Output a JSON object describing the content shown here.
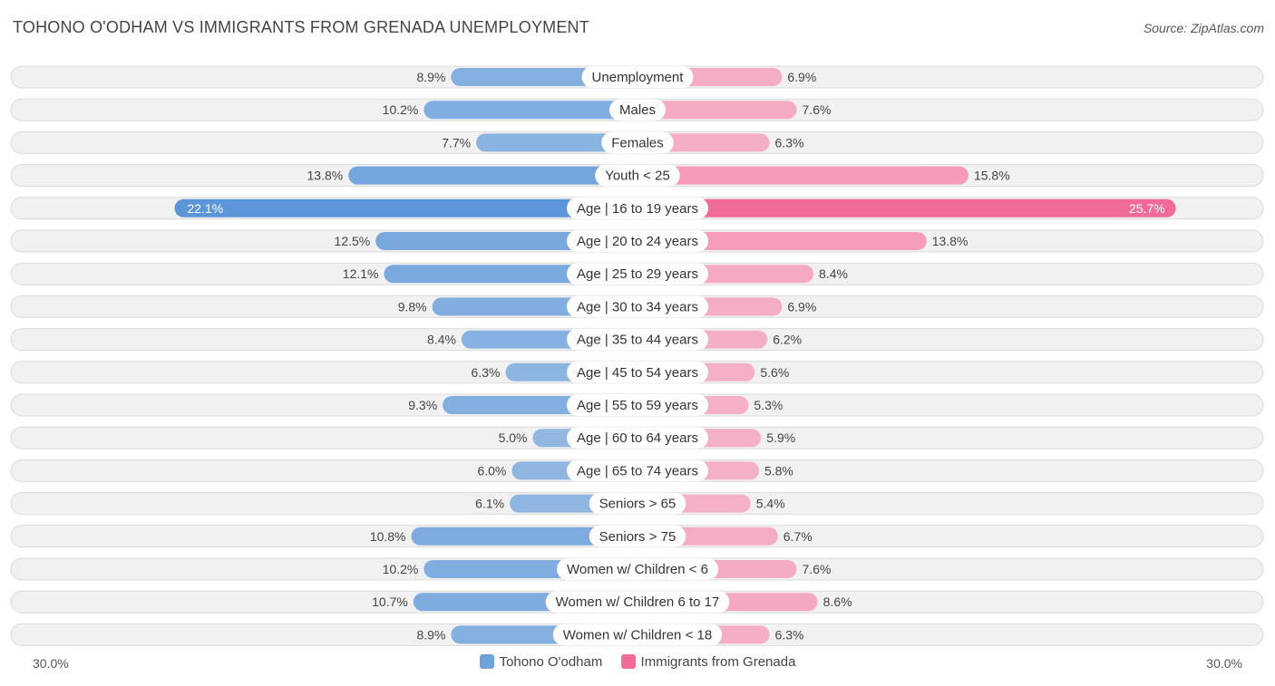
{
  "title": "TOHONO O'ODHAM VS IMMIGRANTS FROM GRENADA UNEMPLOYMENT",
  "source": "Source: ZipAtlas.com",
  "colors": {
    "left": "#6fa3dc",
    "left_strong": "#5b96d9",
    "right": "#f59ab7",
    "right_strong": "#f06b97"
  },
  "chart_data": {
    "type": "bar",
    "orientation": "horizontal-diverging",
    "title": "TOHONO O'ODHAM VS IMMIGRANTS FROM GRENADA UNEMPLOYMENT",
    "categories": [
      "Unemployment",
      "Males",
      "Females",
      "Youth < 25",
      "Age | 16 to 19 years",
      "Age | 20 to 24 years",
      "Age | 25 to 29 years",
      "Age | 30 to 34 years",
      "Age | 35 to 44 years",
      "Age | 45 to 54 years",
      "Age | 55 to 59 years",
      "Age | 60 to 64 years",
      "Age | 65 to 74 years",
      "Seniors > 65",
      "Seniors > 75",
      "Women w/ Children < 6",
      "Women w/ Children 6 to 17",
      "Women w/ Children < 18"
    ],
    "series": [
      {
        "name": "Tohono O'odham",
        "values": [
          8.9,
          10.2,
          7.7,
          13.8,
          22.1,
          12.5,
          12.1,
          9.8,
          8.4,
          6.3,
          9.3,
          5.0,
          6.0,
          6.1,
          10.8,
          10.2,
          10.7,
          8.9
        ],
        "labels": [
          "8.9%",
          "10.2%",
          "7.7%",
          "13.8%",
          "22.1%",
          "12.5%",
          "12.1%",
          "9.8%",
          "8.4%",
          "6.3%",
          "9.3%",
          "5.0%",
          "6.0%",
          "6.1%",
          "10.8%",
          "10.2%",
          "10.7%",
          "8.9%"
        ]
      },
      {
        "name": "Immigrants from Grenada",
        "values": [
          6.9,
          7.6,
          6.3,
          15.8,
          25.7,
          13.8,
          8.4,
          6.9,
          6.2,
          5.6,
          5.3,
          5.9,
          5.8,
          5.4,
          6.7,
          7.6,
          8.6,
          6.3
        ],
        "labels": [
          "6.9%",
          "7.6%",
          "6.3%",
          "15.8%",
          "25.7%",
          "13.8%",
          "8.4%",
          "6.9%",
          "6.2%",
          "5.6%",
          "5.3%",
          "5.9%",
          "5.8%",
          "5.4%",
          "6.7%",
          "7.6%",
          "8.6%",
          "6.3%"
        ]
      }
    ],
    "xlim": [
      -30,
      30
    ],
    "axis_labels": {
      "left": "30.0%",
      "right": "30.0%"
    },
    "legend": [
      "Tohono O'odham",
      "Immigrants from Grenada"
    ],
    "legend_position": "bottom-center"
  }
}
